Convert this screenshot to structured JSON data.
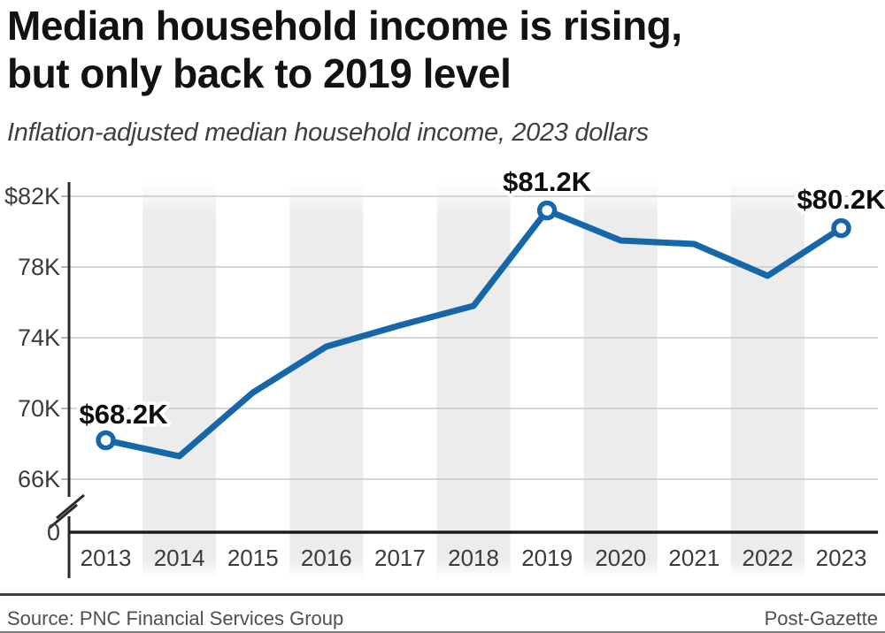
{
  "header": {
    "title_line1": "Median household income is rising,",
    "title_line2": "but only back to 2019 level",
    "subtitle": "Inflation-adjusted median household income, 2023 dollars"
  },
  "chart_data": {
    "type": "line",
    "title": "Median household income is rising, but only back to 2019 level",
    "subtitle": "Inflation-adjusted median household income, 2023 dollars",
    "categories": [
      "2013",
      "2014",
      "2015",
      "2016",
      "2017",
      "2018",
      "2019",
      "2020",
      "2021",
      "2022",
      "2023"
    ],
    "values": [
      68.2,
      67.3,
      70.9,
      73.5,
      74.7,
      75.8,
      81.2,
      79.5,
      79.3,
      77.5,
      80.2
    ],
    "values_unit": "thousands of 2023 dollars",
    "y_axis": {
      "tick_values": [
        82,
        78,
        74,
        70,
        66
      ],
      "tick_labels": [
        "$82K",
        "78K",
        "74K",
        "70K",
        "66K"
      ],
      "zero_label": "0",
      "axis_break": true,
      "visible_range": [
        66,
        82
      ]
    },
    "point_labels": [
      {
        "category": "2013",
        "label": "$68.2K",
        "pos": "left-of-point"
      },
      {
        "category": "2019",
        "label": "$81.2K",
        "pos": "above-point"
      },
      {
        "category": "2023",
        "label": "$80.2K",
        "pos": "above-point"
      }
    ],
    "marked_categories": [
      "2013",
      "2019",
      "2023"
    ],
    "shaded_categories": [
      "2014",
      "2016",
      "2018",
      "2020",
      "2022"
    ],
    "grid": "horizontal-only",
    "legend": "none",
    "colors": {
      "line": "#1567a9",
      "marker_fill": "#ffffff",
      "band": "#ececec",
      "grid": "#c8c8c8",
      "axis": "#2b2b2b",
      "baseline": "#1c1c1c",
      "tick_text": "#3b3b3b",
      "point_label_text": "#0d0d0d"
    }
  },
  "footer": {
    "source": "Source: PNC Financial Services Group",
    "credit": "Post-Gazette"
  }
}
